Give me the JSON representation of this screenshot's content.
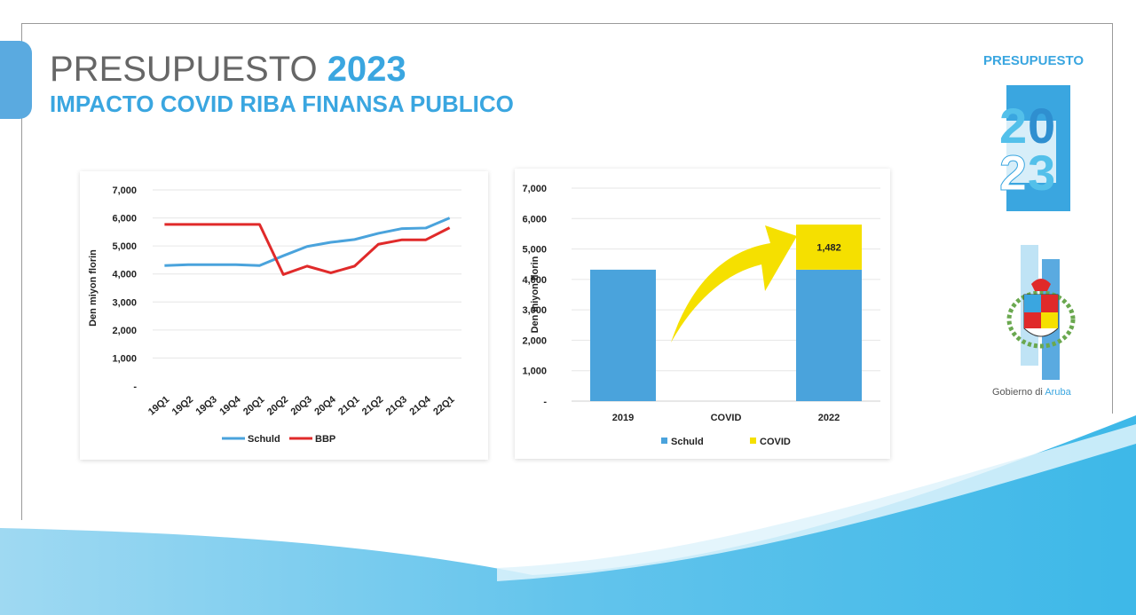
{
  "slide": {
    "title_main": "PRESUPUESTO",
    "title_year": "2023",
    "subtitle": "IMPACTO COVID RIBA FINANSA PUBLICO"
  },
  "logo": {
    "word": "PRESUPUESTO",
    "digits": [
      "2",
      "0",
      "2",
      "3"
    ]
  },
  "government": {
    "text_prefix": "Gobierno di ",
    "text_accent": "Aruba"
  },
  "colors": {
    "accent": "#3aa6e0",
    "schuld": "#4aa3dc",
    "bbp": "#e02a2a",
    "covid": "#f5e000",
    "title_gray": "#666666"
  },
  "chart_data": [
    {
      "type": "line",
      "ylabel": "Den miyon florin",
      "xlabel": "",
      "ylim": [
        0,
        7000
      ],
      "yticks": [
        "-",
        "1,000",
        "2,000",
        "3,000",
        "4,000",
        "5,000",
        "6,000",
        "7,000"
      ],
      "categories": [
        "19Q1",
        "19Q2",
        "19Q3",
        "19Q4",
        "20Q1",
        "20Q2",
        "20Q3",
        "20Q4",
        "21Q1",
        "21Q2",
        "21Q3",
        "21Q4",
        "22Q1"
      ],
      "series": [
        {
          "name": "Schuld",
          "color": "#4aa3dc",
          "values": [
            4300,
            4330,
            4330,
            4330,
            4300,
            4650,
            4980,
            5130,
            5230,
            5450,
            5620,
            5640,
            6000
          ]
        },
        {
          "name": "BBP",
          "color": "#e02a2a",
          "values": [
            5770,
            5770,
            5770,
            5770,
            5770,
            3980,
            4280,
            4040,
            4280,
            5060,
            5220,
            5220,
            5650
          ]
        }
      ],
      "grid": true,
      "legend": "bottom"
    },
    {
      "type": "bar",
      "stacked": true,
      "ylabel": "Den miyon florin",
      "xlabel": "",
      "ylim": [
        0,
        7000
      ],
      "yticks": [
        "-",
        "1,000",
        "2,000",
        "3,000",
        "4,000",
        "5,000",
        "6,000",
        "7,000"
      ],
      "categories": [
        "2019",
        "COVID",
        "2022"
      ],
      "series": [
        {
          "name": "Schuld",
          "color": "#4aa3dc",
          "values": [
            4320,
            0,
            4320
          ]
        },
        {
          "name": "COVID",
          "color": "#f5e000",
          "values": [
            0,
            0,
            1482
          ]
        }
      ],
      "data_labels": [
        {
          "series": 1,
          "category": 2,
          "text": "1,482"
        }
      ],
      "grid": true,
      "legend": "bottom"
    }
  ]
}
